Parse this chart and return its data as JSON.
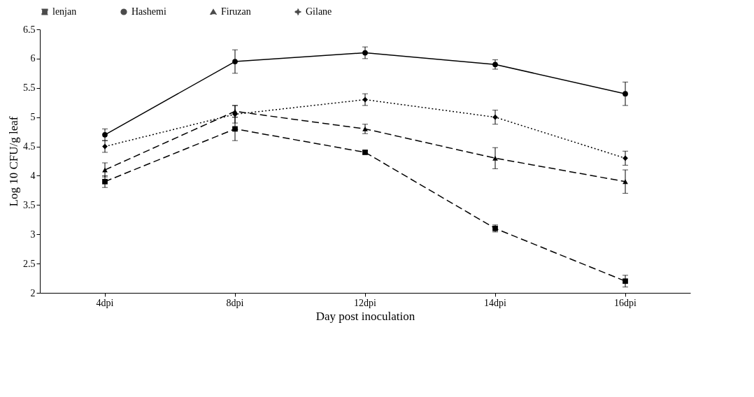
{
  "chart_data": {
    "type": "line",
    "xlabel": "Day post inoculation",
    "ylabel": "Log 10 CFU/g leaf",
    "categories": [
      "4dpi",
      "8dpi",
      "12dpi",
      "14dpi",
      "16dpi"
    ],
    "series": [
      {
        "name": "lenjan",
        "color": "#000000",
        "marker": "square",
        "line_style": "dashed",
        "values": [
          3.9,
          4.8,
          4.4,
          3.1,
          2.2
        ],
        "errors": [
          0.1,
          0.2,
          0.03,
          0.06,
          0.1
        ]
      },
      {
        "name": "Hashemi",
        "color": "#000000",
        "marker": "circle",
        "line_style": "solid",
        "values": [
          4.7,
          5.95,
          6.1,
          5.9,
          5.4
        ],
        "errors": [
          0.1,
          0.2,
          0.1,
          0.08,
          0.2
        ]
      },
      {
        "name": "Firuzan",
        "color": "#000000",
        "marker": "triangle",
        "line_style": "dashed",
        "values": [
          4.1,
          5.1,
          4.8,
          4.3,
          3.9
        ],
        "errors": [
          0.12,
          0.1,
          0.08,
          0.18,
          0.2
        ]
      },
      {
        "name": "Gilane",
        "color": "#000000",
        "marker": "diamond",
        "line_style": "dotted",
        "values": [
          4.5,
          5.05,
          5.3,
          5.0,
          4.3
        ],
        "errors": [
          0.1,
          0.15,
          0.1,
          0.12,
          0.12
        ]
      }
    ],
    "ylim": [
      2,
      6.5
    ],
    "yticks": [
      2,
      2.5,
      3,
      3.5,
      4,
      4.5,
      5,
      5.5,
      6,
      6.5
    ],
    "grid": false,
    "legend": "top"
  }
}
